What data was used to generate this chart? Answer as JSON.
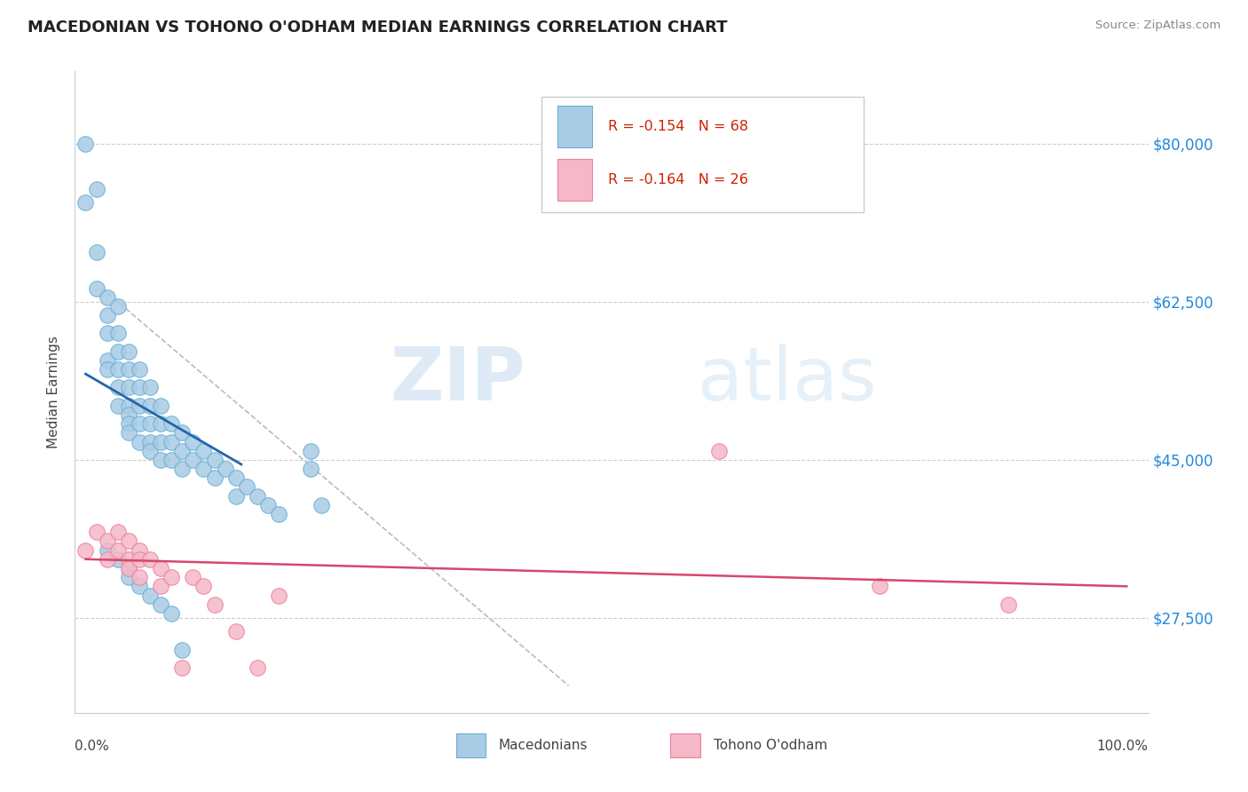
{
  "title": "MACEDONIAN VS TOHONO O'ODHAM MEDIAN EARNINGS CORRELATION CHART",
  "source": "Source: ZipAtlas.com",
  "ylabel": "Median Earnings",
  "yticks": [
    27500,
    45000,
    62500,
    80000
  ],
  "ytick_labels": [
    "$27,500",
    "$45,000",
    "$62,500",
    "$80,000"
  ],
  "xlim": [
    0.0,
    1.0
  ],
  "ylim": [
    17000,
    88000
  ],
  "blue_color": "#a8cce4",
  "blue_edge_color": "#6baed6",
  "pink_color": "#f4b8c8",
  "pink_edge_color": "#f08098",
  "blue_line_color": "#2166ac",
  "pink_line_color": "#d6476a",
  "gray_line_color": "#aaaaaa",
  "blue_R": -0.154,
  "blue_N": 68,
  "pink_R": -0.164,
  "pink_N": 26,
  "watermark_zip": "ZIP",
  "watermark_atlas": "atlas",
  "legend_R_color": "#cc0000",
  "legend_N_color": "#0000cc",
  "blue_scatter_x": [
    0.01,
    0.01,
    0.02,
    0.02,
    0.02,
    0.03,
    0.03,
    0.03,
    0.03,
    0.03,
    0.04,
    0.04,
    0.04,
    0.04,
    0.04,
    0.04,
    0.05,
    0.05,
    0.05,
    0.05,
    0.05,
    0.05,
    0.05,
    0.06,
    0.06,
    0.06,
    0.06,
    0.06,
    0.07,
    0.07,
    0.07,
    0.07,
    0.07,
    0.08,
    0.08,
    0.08,
    0.08,
    0.09,
    0.09,
    0.09,
    0.1,
    0.1,
    0.1,
    0.11,
    0.11,
    0.12,
    0.12,
    0.13,
    0.13,
    0.14,
    0.15,
    0.15,
    0.16,
    0.17,
    0.18,
    0.19,
    0.03,
    0.04,
    0.05,
    0.05,
    0.06,
    0.07,
    0.08,
    0.09,
    0.1,
    0.22,
    0.22,
    0.23
  ],
  "blue_scatter_y": [
    80000,
    73500,
    75000,
    68000,
    64000,
    63000,
    61000,
    59000,
    56000,
    55000,
    62000,
    59000,
    57000,
    55000,
    53000,
    51000,
    57000,
    55000,
    53000,
    51000,
    50000,
    49000,
    48000,
    55000,
    53000,
    51000,
    49000,
    47000,
    53000,
    51000,
    49000,
    47000,
    46000,
    51000,
    49000,
    47000,
    45000,
    49000,
    47000,
    45000,
    48000,
    46000,
    44000,
    47000,
    45000,
    46000,
    44000,
    45000,
    43000,
    44000,
    43000,
    41000,
    42000,
    41000,
    40000,
    39000,
    35000,
    34000,
    33000,
    32000,
    31000,
    30000,
    29000,
    28000,
    24000,
    46000,
    44000,
    40000
  ],
  "pink_scatter_x": [
    0.01,
    0.02,
    0.03,
    0.03,
    0.04,
    0.04,
    0.05,
    0.05,
    0.05,
    0.06,
    0.06,
    0.06,
    0.07,
    0.08,
    0.08,
    0.09,
    0.1,
    0.11,
    0.12,
    0.13,
    0.15,
    0.17,
    0.19,
    0.6,
    0.75,
    0.87
  ],
  "pink_scatter_y": [
    35000,
    37000,
    36000,
    34000,
    37000,
    35000,
    36000,
    34000,
    33000,
    35000,
    34000,
    32000,
    34000,
    33000,
    31000,
    32000,
    22000,
    32000,
    31000,
    29000,
    26000,
    22000,
    30000,
    46000,
    31000,
    29000
  ],
  "blue_line_x": [
    0.01,
    0.155
  ],
  "blue_line_y": [
    54500,
    44500
  ],
  "pink_line_x": [
    0.01,
    0.98
  ],
  "pink_line_y": [
    34000,
    31000
  ],
  "gray_line_x": [
    0.025,
    0.46
  ],
  "gray_line_y": [
    64000,
    20000
  ]
}
